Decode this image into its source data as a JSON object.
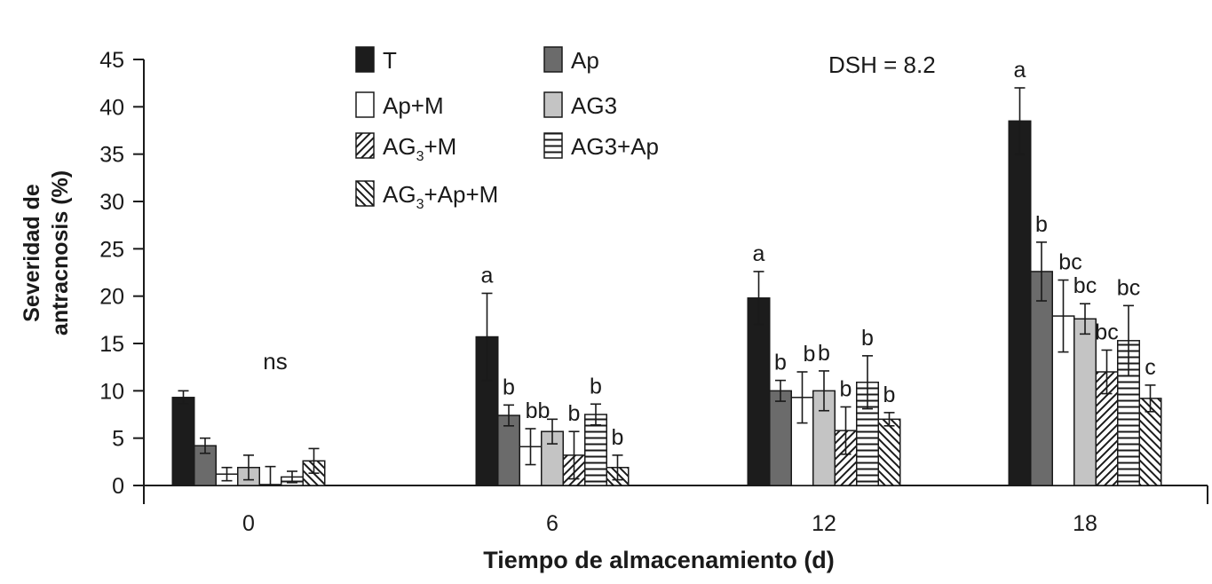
{
  "chart_data": {
    "type": "bar",
    "xlabel": "Tiempo de almacenamiento (d)",
    "ylabel_line1": "Severidad de",
    "ylabel_line2": "antracnosis (%)",
    "annotation": "DSH = 8.2",
    "categories": [
      "0",
      "6",
      "12",
      "18"
    ],
    "ylim": [
      0,
      45
    ],
    "yticks": [
      0,
      5,
      10,
      15,
      20,
      25,
      30,
      35,
      40,
      45
    ],
    "group_labels": [
      "ns",
      "",
      "",
      ""
    ],
    "colors": {
      "black": "#1c1c1c",
      "dark_gray": "#6b6b6b",
      "white": "#ffffff",
      "light_gray": "#c4c4c4",
      "stroke": "#1a1a1a"
    },
    "series": [
      {
        "name": "T",
        "legend_main": "T",
        "legend_sub": "",
        "legend_rest": "",
        "pattern": "black",
        "values": [
          9.3,
          15.7,
          19.8,
          38.5
        ],
        "errors": [
          0.7,
          4.6,
          2.8,
          3.5
        ],
        "letters": [
          "",
          "a",
          "a",
          "a"
        ]
      },
      {
        "name": "Ap",
        "legend_main": "Ap",
        "legend_sub": "",
        "legend_rest": "",
        "pattern": "dark-gray",
        "values": [
          4.2,
          7.4,
          10.0,
          22.6
        ],
        "errors": [
          0.8,
          1.1,
          1.1,
          3.1
        ],
        "letters": [
          "",
          "b",
          "b",
          "b"
        ]
      },
      {
        "name": "Ap+M",
        "legend_main": "Ap+M",
        "legend_sub": "",
        "legend_rest": "",
        "pattern": "white",
        "values": [
          1.2,
          4.1,
          9.3,
          17.9
        ],
        "errors": [
          0.7,
          1.9,
          2.7,
          3.8
        ],
        "letters": [
          "",
          "bb",
          "b",
          "bc"
        ]
      },
      {
        "name": "AG3",
        "legend_main": "AG3",
        "legend_sub": "",
        "legend_rest": "",
        "pattern": "light-gray",
        "values": [
          1.9,
          5.7,
          10.0,
          17.6
        ],
        "errors": [
          1.3,
          1.3,
          2.1,
          1.6
        ],
        "letters": [
          "",
          "",
          "b",
          "bc"
        ]
      },
      {
        "name": "AG3+M",
        "legend_main": "AG",
        "legend_sub": "3",
        "legend_rest": "+M",
        "pattern": "diagonal-right",
        "values": [
          0.1,
          3.2,
          5.8,
          12.0
        ],
        "errors": [
          1.9,
          2.5,
          2.5,
          2.3
        ],
        "letters": [
          "",
          "b",
          "b",
          "bc"
        ]
      },
      {
        "name": "AG3+Ap",
        "legend_main": "AG3+Ap",
        "legend_sub": "",
        "legend_rest": "",
        "pattern": "horizontal",
        "values": [
          0.9,
          7.5,
          10.9,
          15.3
        ],
        "errors": [
          0.6,
          1.1,
          2.8,
          3.7
        ],
        "letters": [
          "",
          "b",
          "b",
          "bc"
        ]
      },
      {
        "name": "AG3+Ap+M",
        "legend_main": "AG",
        "legend_sub": "3",
        "legend_rest": "+Ap+M",
        "pattern": "diagonal-left",
        "values": [
          2.6,
          1.9,
          7.0,
          9.2
        ],
        "errors": [
          1.3,
          1.3,
          0.7,
          1.4
        ],
        "letters": [
          "",
          "b",
          "b",
          "c"
        ]
      }
    ]
  }
}
